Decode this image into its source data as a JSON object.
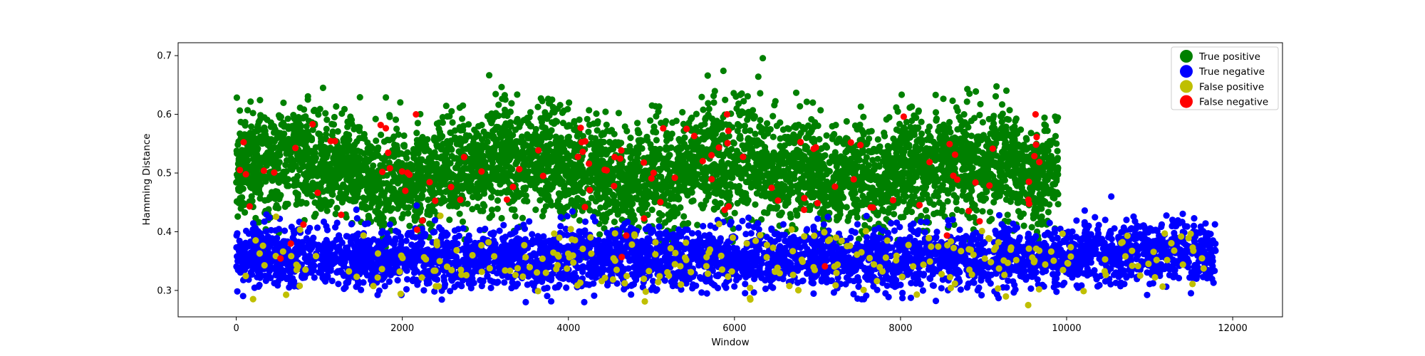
{
  "chart_data": {
    "type": "scatter",
    "title": "",
    "xlabel": "Window",
    "ylabel": "Hamming Distance",
    "xlim": [
      -700,
      12600
    ],
    "ylim": [
      0.255,
      0.722
    ],
    "x_ticks": [
      0,
      2000,
      4000,
      6000,
      8000,
      10000,
      12000
    ],
    "y_ticks": [
      0.3,
      0.4,
      0.5,
      0.6,
      0.7
    ],
    "grid": false,
    "legend_position": "top-right",
    "point_count_total": 11800,
    "series": [
      {
        "name": "True positive",
        "color": "#008000",
        "x_range": [
          0,
          9900
        ],
        "mean": 0.505,
        "spread": 0.045,
        "min": 0.31,
        "max": 0.7
      },
      {
        "name": "True negative",
        "color": "#0000ff",
        "x_range": [
          0,
          11800
        ],
        "mean": 0.355,
        "spread": 0.025,
        "min": 0.28,
        "max": 0.46
      },
      {
        "name": "False positive",
        "color": "#bfbf00",
        "x_range": [
          0,
          11650
        ],
        "mean": 0.35,
        "spread": 0.03,
        "min": 0.275,
        "max": 0.46
      },
      {
        "name": "False negative",
        "color": "#ff0000",
        "x_range": [
          0,
          9850
        ],
        "mean": 0.5,
        "spread": 0.06,
        "min": 0.31,
        "max": 0.6
      }
    ]
  }
}
